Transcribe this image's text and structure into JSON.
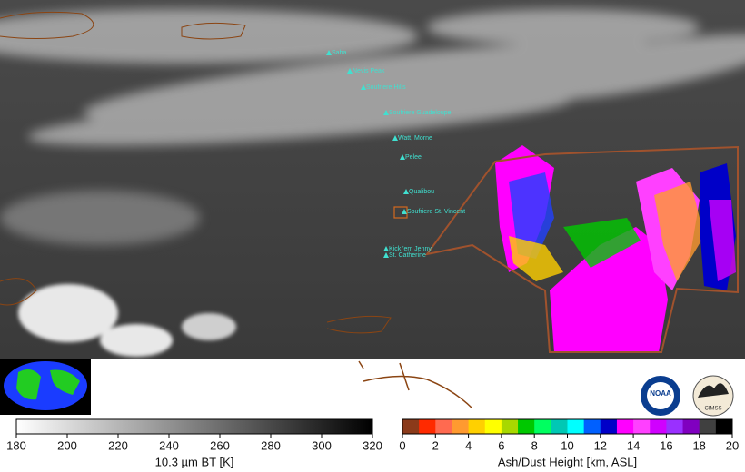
{
  "volcanoes": [
    "Saba",
    "Nevis Peak",
    "Soufriere Hills",
    "Soufriere Guadeloupe",
    "Watt, Morne",
    "Pelee",
    "Qualibou",
    "Soufriere St. Vincent",
    "Kick 'em Jenny",
    "St. Catherine"
  ],
  "logos": [
    "NOAA",
    "CIMSS"
  ],
  "colorbars": [
    {
      "label": "10.3 µm BT [K]",
      "lim": [
        180,
        320
      ],
      "ticks": [
        180,
        200,
        220,
        240,
        260,
        280,
        300,
        320
      ],
      "colors": [
        "#ffffff",
        "#000000"
      ]
    },
    {
      "label": "Ash/Dust Height [km, ASL]",
      "lim": [
        0,
        20
      ],
      "ticks": [
        0,
        2,
        4,
        6,
        8,
        10,
        12,
        14,
        16,
        18,
        20
      ],
      "colors": [
        "#8b3a1a",
        "#ff2a00",
        "#ff6a50",
        "#ff9a30",
        "#ffd000",
        "#ffff00",
        "#a8d800",
        "#00c800",
        "#00ff60",
        "#00c8b4",
        "#00ffff",
        "#0060ff",
        "#0000c8",
        "#ff00ff",
        "#ff40ff",
        "#d000ff",
        "#9a30ff",
        "#8000c0",
        "#404040",
        "#000000"
      ]
    }
  ]
}
